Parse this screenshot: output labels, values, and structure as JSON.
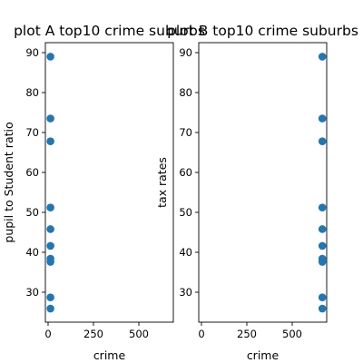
{
  "chart_data": [
    {
      "type": "scatter",
      "title": "plot A top10 crime suburbs",
      "xlabel": "crime",
      "ylabel": "pupil to Student ratio",
      "xlim": [
        -15,
        690
      ],
      "ylim": [
        22.5,
        92.5
      ],
      "xticks": [
        0,
        250,
        500
      ],
      "yticks": [
        30,
        40,
        50,
        60,
        70,
        80,
        90
      ],
      "color": "#1f77b4",
      "points": [
        {
          "x": 13,
          "y": 89.0
        },
        {
          "x": 13,
          "y": 73.5
        },
        {
          "x": 13,
          "y": 67.8
        },
        {
          "x": 13,
          "y": 51.2
        },
        {
          "x": 13,
          "y": 45.8
        },
        {
          "x": 13,
          "y": 41.6
        },
        {
          "x": 13,
          "y": 38.4
        },
        {
          "x": 13,
          "y": 37.6
        },
        {
          "x": 13,
          "y": 28.7
        },
        {
          "x": 13,
          "y": 25.9
        }
      ]
    },
    {
      "type": "scatter",
      "title": "plot B top10 crime suburbs",
      "xlabel": "crime",
      "ylabel": "tax rates",
      "xlim": [
        -15,
        690
      ],
      "ylim": [
        22.5,
        92.5
      ],
      "xticks": [
        0,
        250,
        500
      ],
      "yticks": [
        30,
        40,
        50,
        60,
        70,
        80,
        90
      ],
      "color": "#1f77b4",
      "points": [
        {
          "x": 666,
          "y": 89.0
        },
        {
          "x": 666,
          "y": 73.5
        },
        {
          "x": 666,
          "y": 67.8
        },
        {
          "x": 666,
          "y": 51.2
        },
        {
          "x": 666,
          "y": 45.8
        },
        {
          "x": 666,
          "y": 41.6
        },
        {
          "x": 666,
          "y": 38.4
        },
        {
          "x": 666,
          "y": 37.6
        },
        {
          "x": 666,
          "y": 28.7
        },
        {
          "x": 666,
          "y": 25.9
        }
      ]
    }
  ]
}
